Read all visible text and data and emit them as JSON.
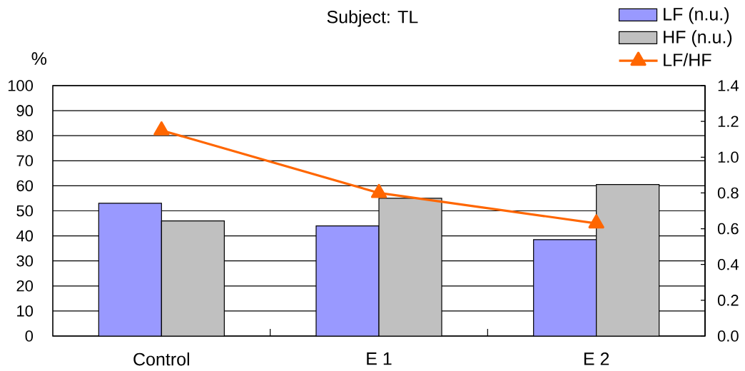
{
  "chart_data": {
    "type": "bar",
    "title": "Subject: TL",
    "ylabel": "%",
    "categories": [
      "Control",
      "E 1",
      "E 2"
    ],
    "series": [
      {
        "name": "LF (n.u.)",
        "color": "#9999ff",
        "values": [
          53,
          44,
          38.5
        ]
      },
      {
        "name": "HF (n.u.)",
        "color": "#c0c0c0",
        "values": [
          46,
          55,
          60.5
        ]
      },
      {
        "name": "LF/HF",
        "type": "line",
        "axis": "y2",
        "color": "#ff6600",
        "marker": "triangle",
        "line_style": "solid",
        "values": [
          1.15,
          0.8,
          0.63
        ]
      }
    ],
    "ylim": [
      0,
      100
    ],
    "yticks": [
      0,
      10,
      20,
      30,
      40,
      50,
      60,
      70,
      80,
      90,
      100
    ],
    "y2lim": [
      0,
      1.4
    ],
    "y2ticks": [
      {
        "value": 0,
        "label": "0.0"
      },
      0.2,
      0.4,
      0.6,
      0.8,
      {
        "value": 1,
        "label": "1.0"
      },
      1.2,
      1.4
    ],
    "grid": "y",
    "legend": "top right"
  }
}
